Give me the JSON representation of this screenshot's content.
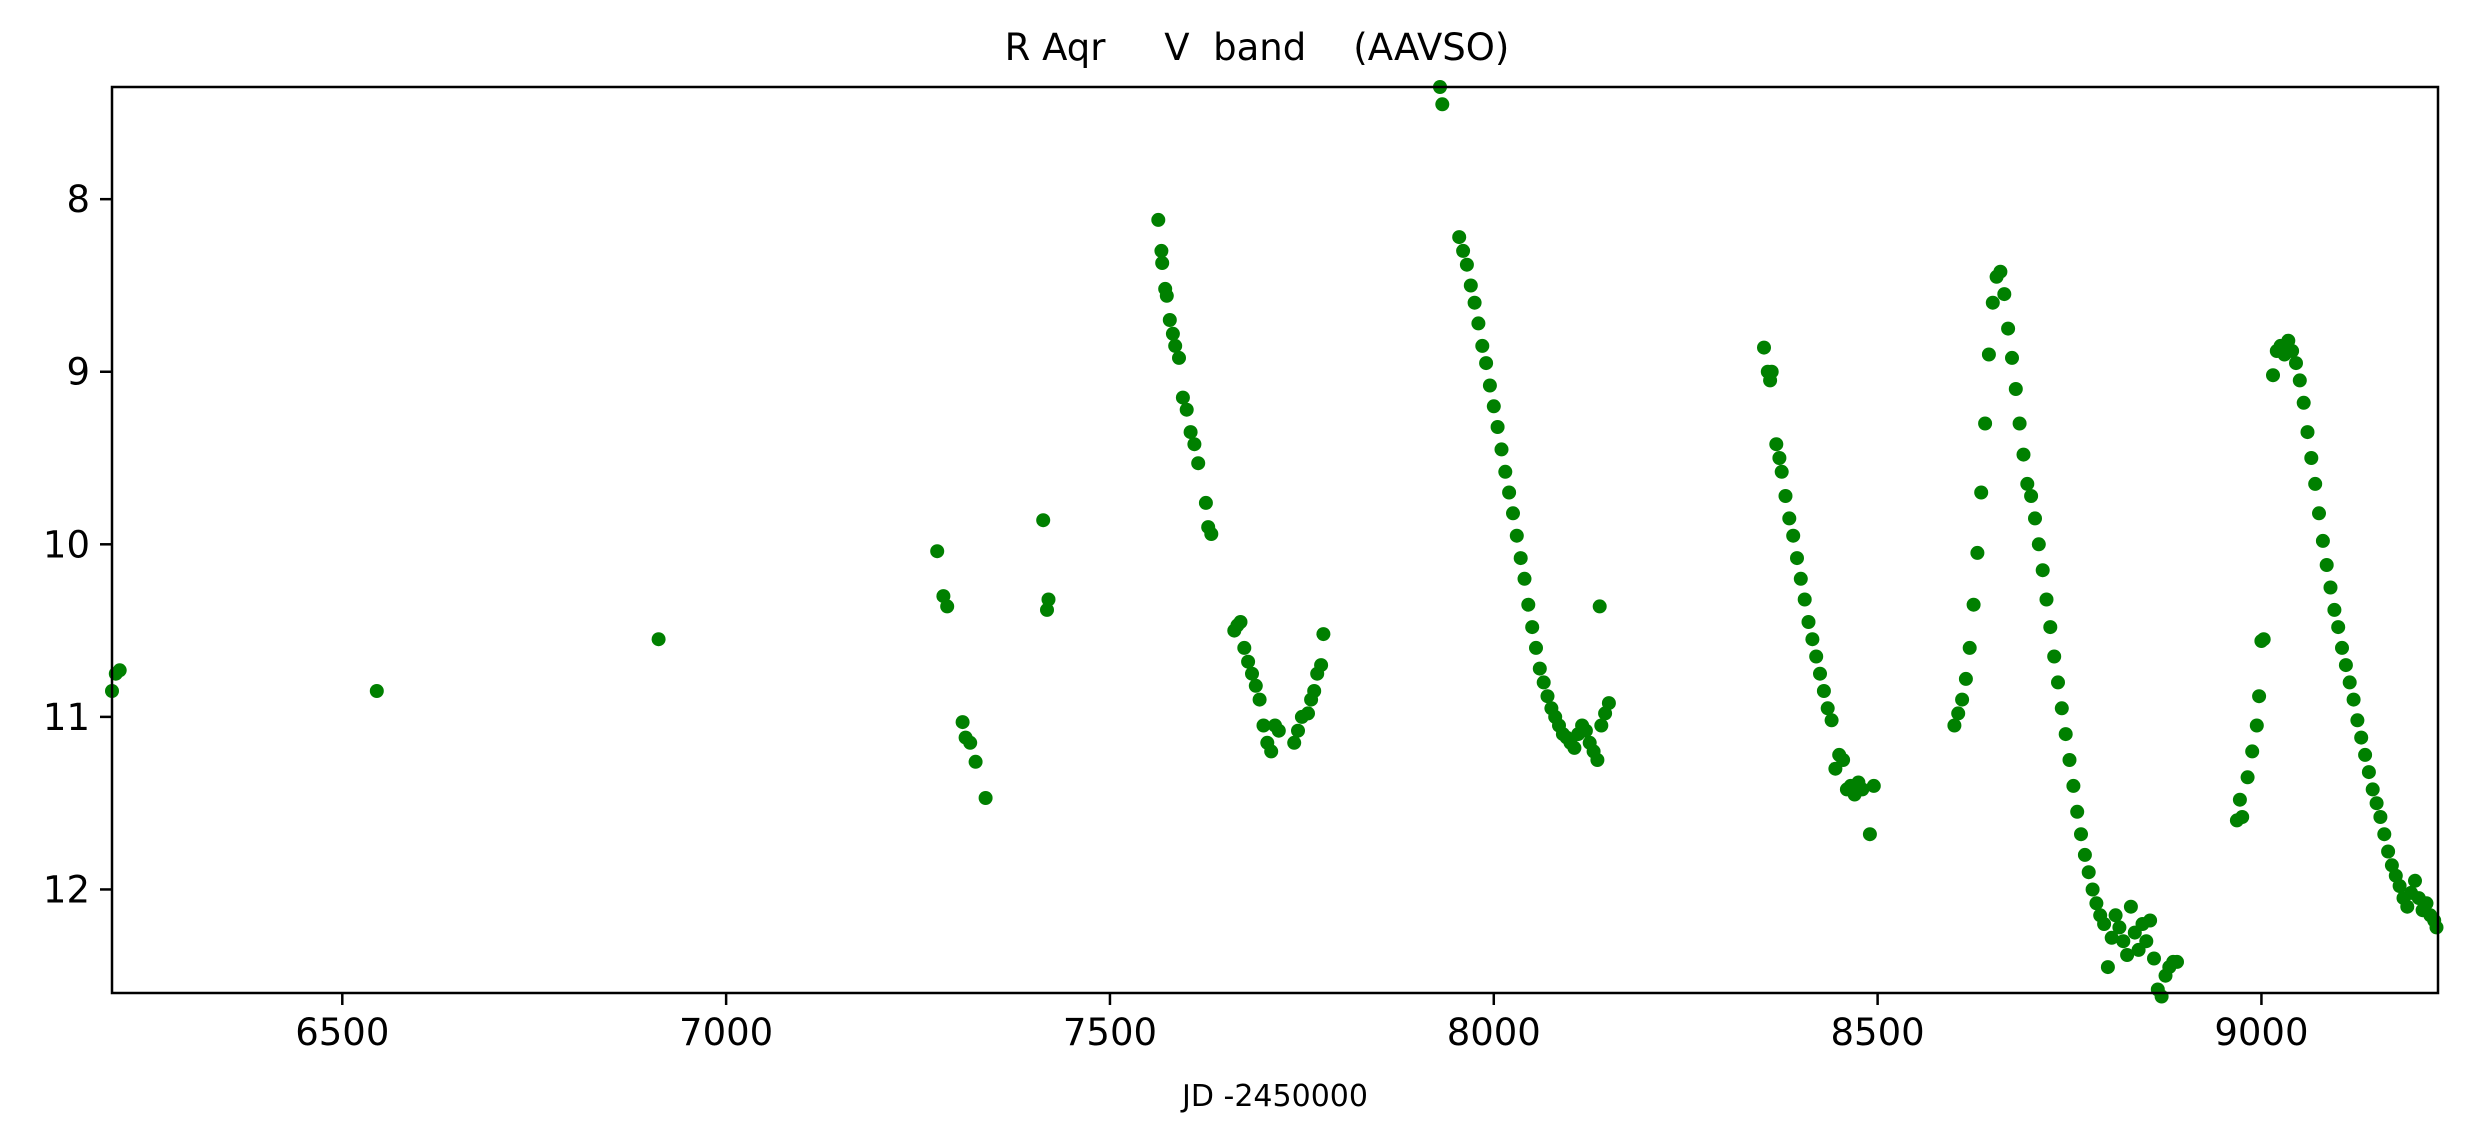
{
  "chart_data": {
    "type": "scatter",
    "title": "R Aqr     V  band    (AAVSO)",
    "xlabel": "JD -2450000",
    "ylabel": "",
    "xlim": [
      6200,
      9230
    ],
    "ylim": [
      12.6,
      7.35
    ],
    "y_inverted": true,
    "grid": false,
    "legend": "none",
    "marker_color": "#008000",
    "x_ticks": [
      6500,
      7000,
      7500,
      8000,
      8500,
      9000
    ],
    "y_ticks": [
      8,
      9,
      10,
      11,
      12
    ],
    "x_tick_labels": [
      "6500",
      "7000",
      "7500",
      "8000",
      "8500",
      "9000"
    ],
    "y_tick_labels": [
      "8",
      "9",
      "10",
      "11",
      "12"
    ],
    "series": [
      {
        "color": "#008000",
        "x": [
          6200,
          6205,
          6210,
          6545,
          6912,
          7275,
          7283,
          7288,
          7308,
          7312,
          7318,
          7325,
          7338,
          7413,
          7418,
          7420,
          7563,
          7567,
          7568,
          7572,
          7574,
          7578,
          7582,
          7585,
          7590,
          7595,
          7600,
          7605,
          7610,
          7615,
          7625,
          7628,
          7632,
          7662,
          7666,
          7670,
          7675,
          7680,
          7685,
          7690,
          7695,
          7700,
          7705,
          7710,
          7715,
          7720,
          7740,
          7745,
          7750,
          7758,
          7762,
          7766,
          7770,
          7775,
          7778,
          7930,
          7933,
          7955,
          7960,
          7965,
          7970,
          7975,
          7980,
          7985,
          7990,
          7995,
          8000,
          8005,
          8010,
          8015,
          8020,
          8025,
          8030,
          8035,
          8040,
          8045,
          8050,
          8055,
          8060,
          8065,
          8070,
          8075,
          8080,
          8085,
          8090,
          8095,
          8100,
          8105,
          8110,
          8115,
          8120,
          8125,
          8130,
          8135,
          8138,
          8140,
          8145,
          8150,
          8352,
          8357,
          8360,
          8362,
          8368,
          8372,
          8375,
          8380,
          8385,
          8390,
          8395,
          8400,
          8405,
          8410,
          8415,
          8420,
          8425,
          8430,
          8435,
          8440,
          8445,
          8450,
          8455,
          8460,
          8465,
          8470,
          8475,
          8480,
          8490,
          8495,
          8600,
          8605,
          8610,
          8615,
          8620,
          8625,
          8630,
          8635,
          8640,
          8645,
          8650,
          8655,
          8660,
          8665,
          8670,
          8675,
          8680,
          8685,
          8690,
          8695,
          8700,
          8705,
          8710,
          8715,
          8720,
          8725,
          8730,
          8735,
          8740,
          8745,
          8750,
          8755,
          8760,
          8765,
          8770,
          8775,
          8780,
          8785,
          8790,
          8795,
          8800,
          8805,
          8810,
          8815,
          8820,
          8825,
          8830,
          8835,
          8840,
          8845,
          8850,
          8855,
          8860,
          8865,
          8870,
          8875,
          8880,
          8885,
          8890,
          8968,
          8972,
          8975,
          8982,
          8988,
          8994,
          8997,
          9000,
          9003,
          9015,
          9020,
          9025,
          9030,
          9035,
          9040,
          9045,
          9050,
          9055,
          9060,
          9065,
          9070,
          9075,
          9080,
          9085,
          9090,
          9095,
          9100,
          9105,
          9110,
          9115,
          9120,
          9125,
          9130,
          9135,
          9140,
          9145,
          9150,
          9155,
          9160,
          9165,
          9170,
          9175,
          9180,
          9185,
          9190,
          9195,
          9200,
          9205,
          9210,
          9215,
          9220,
          9225,
          9228
        ],
        "y": [
          10.85,
          10.75,
          10.73,
          10.85,
          10.55,
          10.04,
          10.3,
          10.36,
          11.03,
          11.12,
          11.15,
          11.26,
          11.47,
          9.86,
          10.38,
          10.32,
          8.12,
          8.3,
          8.37,
          8.52,
          8.56,
          8.7,
          8.78,
          8.85,
          8.92,
          9.15,
          9.22,
          9.35,
          9.42,
          9.53,
          9.76,
          9.9,
          9.94,
          10.5,
          10.47,
          10.45,
          10.6,
          10.68,
          10.75,
          10.82,
          10.9,
          11.05,
          11.15,
          11.2,
          11.05,
          11.08,
          11.15,
          11.08,
          11.0,
          10.98,
          10.9,
          10.85,
          10.75,
          10.7,
          10.52,
          7.35,
          7.45,
          8.22,
          8.3,
          8.38,
          8.5,
          8.6,
          8.72,
          8.85,
          8.95,
          9.08,
          9.2,
          9.32,
          9.45,
          9.58,
          9.7,
          9.82,
          9.95,
          10.08,
          10.2,
          10.35,
          10.48,
          10.6,
          10.72,
          10.8,
          10.88,
          10.95,
          11.0,
          11.05,
          11.1,
          11.12,
          11.15,
          11.18,
          11.1,
          11.05,
          11.08,
          11.15,
          11.2,
          11.25,
          10.36,
          11.05,
          10.98,
          10.92,
          8.86,
          9.0,
          9.05,
          9.0,
          9.42,
          9.5,
          9.58,
          9.72,
          9.85,
          9.95,
          10.08,
          10.2,
          10.32,
          10.45,
          10.55,
          10.65,
          10.75,
          10.85,
          10.95,
          11.02,
          11.3,
          11.22,
          11.25,
          11.42,
          11.4,
          11.45,
          11.38,
          11.42,
          11.68,
          11.4,
          11.05,
          10.98,
          10.9,
          10.78,
          10.6,
          10.35,
          10.05,
          9.7,
          9.3,
          8.9,
          8.6,
          8.45,
          8.42,
          8.55,
          8.75,
          8.92,
          9.1,
          9.3,
          9.48,
          9.65,
          9.72,
          9.85,
          10.0,
          10.15,
          10.32,
          10.48,
          10.65,
          10.8,
          10.95,
          11.1,
          11.25,
          11.4,
          11.55,
          11.68,
          11.8,
          11.9,
          12.0,
          12.08,
          12.15,
          12.2,
          12.45,
          12.28,
          12.15,
          12.22,
          12.3,
          12.38,
          12.1,
          12.25,
          12.35,
          12.2,
          12.3,
          12.18,
          12.4,
          12.58,
          12.62,
          12.5,
          12.45,
          12.42,
          12.42,
          11.6,
          11.48,
          11.58,
          11.35,
          11.2,
          11.05,
          10.88,
          10.56,
          10.55,
          9.02,
          8.88,
          8.85,
          8.9,
          8.82,
          8.88,
          8.95,
          9.05,
          9.18,
          9.35,
          9.5,
          9.65,
          9.82,
          9.98,
          10.12,
          10.25,
          10.38,
          10.48,
          10.6,
          10.7,
          10.8,
          10.9,
          11.02,
          11.12,
          11.22,
          11.32,
          11.42,
          11.5,
          11.58,
          11.68,
          11.78,
          11.86,
          11.92,
          11.98,
          12.05,
          12.1,
          12.02,
          11.95,
          12.05,
          12.12,
          12.08,
          12.15,
          12.18,
          12.22
        ]
      }
    ]
  }
}
